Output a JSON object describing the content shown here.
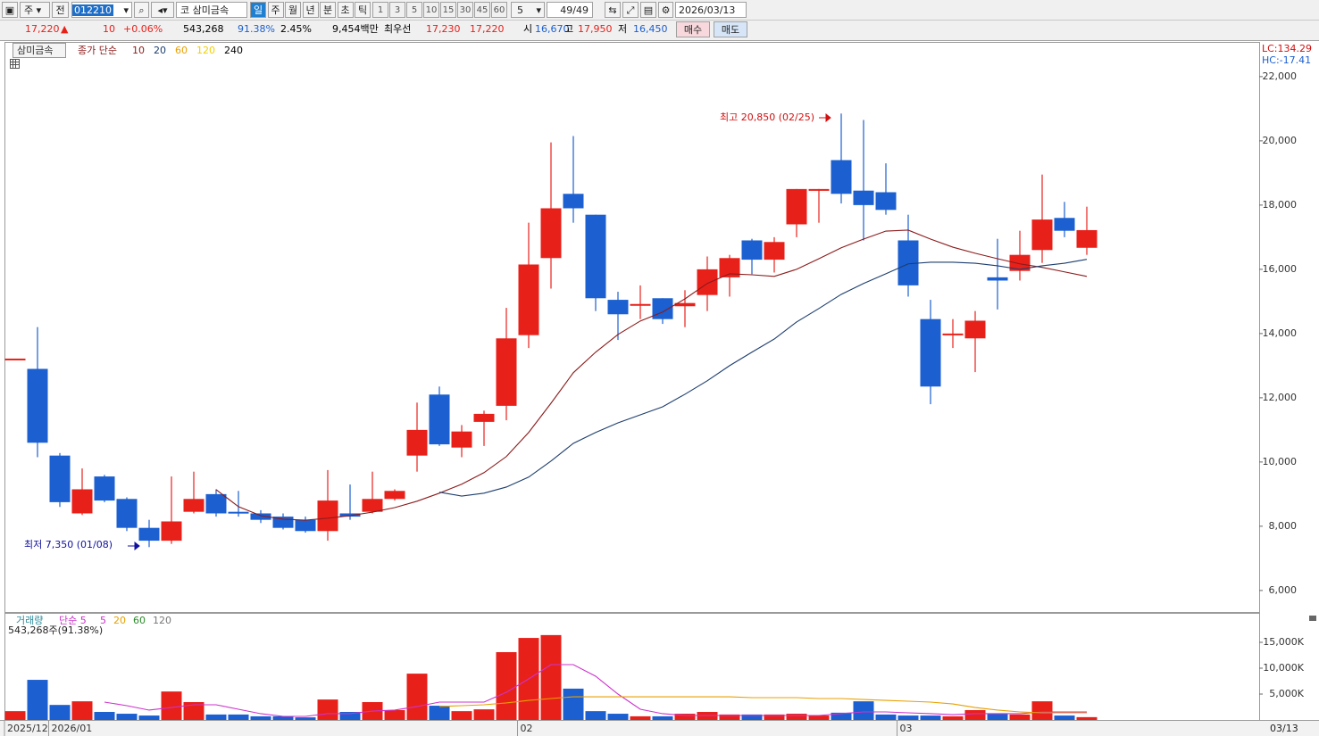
{
  "toolbar": {
    "market": "주",
    "mode": "전",
    "code": "012210",
    "market_tag": "코",
    "name": "삼미금속",
    "periods": [
      "일",
      "주",
      "월",
      "년",
      "분",
      "초",
      "틱"
    ],
    "intervals": [
      "1",
      "3",
      "5",
      "10",
      "15",
      "30",
      "45",
      "60"
    ],
    "interval_select": "5",
    "count": "49/49",
    "date": "2026/03/13"
  },
  "quote": {
    "price": "17,220",
    "arrow": "▲",
    "change": "10",
    "change_pct": "+0.06%",
    "volume": "543,268",
    "volume_ratio": "91.38%",
    "turnover": "2.45%",
    "amount": "9,454백만",
    "best_label": "최우선",
    "best_ask": "17,230",
    "best_bid": "17,220",
    "open_label": "시",
    "open": "16,670",
    "high_label": "고",
    "high": "17,950",
    "low_label": "저",
    "low": "16,450",
    "buy": "매수",
    "sell": "매도"
  },
  "chart_data": {
    "type": "candlestick",
    "title": "삼미금속",
    "up_color": "#e8201a",
    "down_color": "#1b5fd0",
    "categories": [
      "2025/12",
      null,
      "2026/01",
      null,
      null,
      null,
      null,
      null,
      null,
      null,
      null,
      null,
      null,
      null,
      null,
      null,
      null,
      null,
      null,
      null,
      null,
      null,
      null,
      "02",
      null,
      null,
      null,
      null,
      null,
      null,
      null,
      null,
      null,
      null,
      null,
      null,
      null,
      null,
      null,
      null,
      "03",
      null,
      null,
      null,
      null,
      null,
      null,
      null,
      null
    ],
    "open": [
      13220,
      12900,
      10200,
      8400,
      9550,
      8850,
      7950,
      7550,
      8450,
      9000,
      8450,
      8400,
      8300,
      8200,
      7850,
      8400,
      8450,
      8850,
      10200,
      12100,
      10450,
      11250,
      11750,
      13950,
      16350,
      18350,
      17700,
      15050,
      14880,
      15100,
      14850,
      15200,
      15750,
      16900,
      16300,
      17400,
      18450,
      19400,
      18450,
      18400,
      16900,
      14450,
      13950,
      13850,
      15750,
      15950,
      16600,
      17600,
      16670
    ],
    "high": [
      13220,
      14200,
      10280,
      9800,
      9600,
      8900,
      8200,
      9550,
      9700,
      9150,
      9100,
      8500,
      8400,
      8300,
      9750,
      9300,
      9700,
      9150,
      11850,
      12350,
      11150,
      11600,
      14800,
      17450,
      19950,
      20150,
      17700,
      15300,
      15500,
      15100,
      15350,
      16400,
      16450,
      16950,
      17000,
      18500,
      18500,
      20850,
      20650,
      19300,
      17700,
      15050,
      14450,
      14700,
      16950,
      17200,
      18950,
      18100,
      17950
    ],
    "low": [
      13220,
      10150,
      8600,
      8350,
      8750,
      7850,
      7350,
      7450,
      8400,
      8300,
      8300,
      8100,
      7900,
      7800,
      7550,
      8200,
      8400,
      8800,
      9700,
      10500,
      10150,
      10500,
      11300,
      13550,
      15400,
      17450,
      14700,
      13800,
      14450,
      14300,
      14200,
      14700,
      15150,
      15850,
      15900,
      17000,
      17450,
      18050,
      16900,
      17700,
      15150,
      11800,
      13550,
      12800,
      14750,
      15650,
      16200,
      17000,
      16450
    ],
    "close": [
      13220,
      10600,
      8750,
      9150,
      8800,
      7950,
      7550,
      8150,
      8850,
      8400,
      8400,
      8200,
      7950,
      7850,
      8800,
      8300,
      8850,
      9100,
      11000,
      10550,
      10950,
      11500,
      13850,
      16150,
      17900,
      17900,
      15100,
      14600,
      14920,
      14450,
      14950,
      16000,
      16350,
      16300,
      16850,
      18500,
      18500,
      18350,
      18000,
      17850,
      15500,
      12350,
      14000,
      14400,
      15650,
      16450,
      17550,
      17200,
      17220
    ],
    "ylim": [
      5330,
      23080
    ],
    "yticks": [
      {
        "value": 6000,
        "label": "6,000"
      },
      {
        "value": 8000,
        "label": "8,000"
      },
      {
        "value": 10000,
        "label": "10,000"
      },
      {
        "value": 12000,
        "label": "12,000"
      },
      {
        "value": 14000,
        "label": "14,000"
      },
      {
        "value": 16000,
        "label": "16,000"
      },
      {
        "value": 18000,
        "label": "18,000"
      },
      {
        "value": 20000,
        "label": "20,000"
      },
      {
        "value": 22000,
        "label": "22,000"
      }
    ],
    "grid": false,
    "ma_label": "종가 단순",
    "ma_series": [
      {
        "name": "10",
        "color": "#8b1a1a",
        "values": [
          null,
          null,
          null,
          null,
          null,
          null,
          null,
          null,
          null,
          9140,
          8610,
          8330,
          8220,
          8190,
          8250,
          8330,
          8440,
          8580,
          8780,
          9030,
          9310,
          9670,
          10170,
          10920,
          11830,
          12780,
          13420,
          13970,
          14390,
          14670,
          15080,
          15560,
          15860,
          15830,
          15780,
          16000,
          16330,
          16670,
          16940,
          17190,
          17220,
          16940,
          16690,
          16500,
          16330,
          16170,
          16060,
          15920,
          15780
        ]
      },
      {
        "name": "20",
        "color": "#1c3d6e",
        "values": [
          null,
          null,
          null,
          null,
          null,
          null,
          null,
          null,
          null,
          null,
          null,
          null,
          null,
          null,
          null,
          null,
          null,
          null,
          null,
          9060,
          8940,
          9030,
          9220,
          9530,
          10030,
          10580,
          10920,
          11220,
          11470,
          11720,
          12110,
          12530,
          13000,
          13420,
          13830,
          14360,
          14780,
          15220,
          15560,
          15860,
          16170,
          16220,
          16220,
          16190,
          16110,
          16000,
          16110,
          16190,
          16310
        ]
      },
      {
        "name": "60",
        "color": "#e8a000"
      },
      {
        "name": "120",
        "color": "#f0d000"
      },
      {
        "name": "240",
        "color": "#000000"
      }
    ],
    "lc_label": "LC:134.29",
    "hc_label": "HC:-17.41",
    "annotations": [
      {
        "text": "최고 20,850 (02/25)",
        "color": "#d01010"
      },
      {
        "text": "최저 7,350 (01/08)",
        "color": "#1010a0"
      }
    ],
    "current_date": "03/13",
    "volume": {
      "label": "거래량",
      "info": "543,268주(91.38%)",
      "ma_label": "단순 5",
      "values": [
        1700,
        7750,
        2900,
        3600,
        1550,
        1200,
        850,
        5500,
        3450,
        1050,
        1050,
        700,
        700,
        500,
        3950,
        1550,
        3450,
        1900,
        8950,
        2750,
        1700,
        2050,
        13100,
        15850,
        16400,
        6050,
        1700,
        1200,
        700,
        700,
        1200,
        1550,
        1050,
        1050,
        1050,
        1200,
        850,
        1400,
        3600,
        1050,
        850,
        850,
        700,
        1900,
        1200,
        1050,
        3600,
        850,
        543
      ],
      "ylim": [
        0,
        20690
      ],
      "yticks": [
        {
          "value": 5000,
          "label": "5,000K"
        },
        {
          "value": 10000,
          "label": "10,000K"
        },
        {
          "value": 15000,
          "label": "15,000K"
        }
      ],
      "ma_series": [
        {
          "name": "5",
          "color": "#cc33cc",
          "values": [
            null,
            null,
            null,
            null,
            3450,
            2760,
            1900,
            2410,
            2930,
            2930,
            2070,
            1210,
            690,
            690,
            1210,
            1210,
            1720,
            1900,
            2590,
            3450,
            3450,
            3450,
            5340,
            7930,
            10690,
            10690,
            8450,
            5000,
            2070,
            1210,
            860,
            860,
            860,
            860,
            860,
            860,
            860,
            1210,
            1550,
            1550,
            1380,
            1210,
            1030,
            1210,
            1210,
            1210,
            1550,
            1550,
            1550
          ]
        },
        {
          "name": "20",
          "color": "#e8a000",
          "values": [
            null,
            null,
            null,
            null,
            null,
            null,
            null,
            null,
            null,
            null,
            null,
            null,
            null,
            null,
            null,
            null,
            null,
            null,
            null,
            2590,
            2760,
            2930,
            3280,
            3790,
            4140,
            4480,
            4480,
            4480,
            4480,
            4480,
            4480,
            4480,
            4480,
            4310,
            4310,
            4310,
            4140,
            4140,
            3960,
            3790,
            3620,
            3450,
            3100,
            2410,
            1900,
            1550,
            1380,
            1380,
            1380
          ]
        },
        {
          "name": "60",
          "color": "#2a8a2a"
        },
        {
          "name": "120",
          "color": "#777777"
        }
      ]
    }
  }
}
